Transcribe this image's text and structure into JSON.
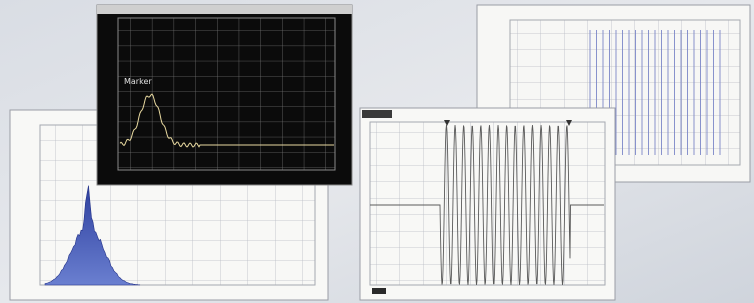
{
  "marker_text": "Marker"
}
